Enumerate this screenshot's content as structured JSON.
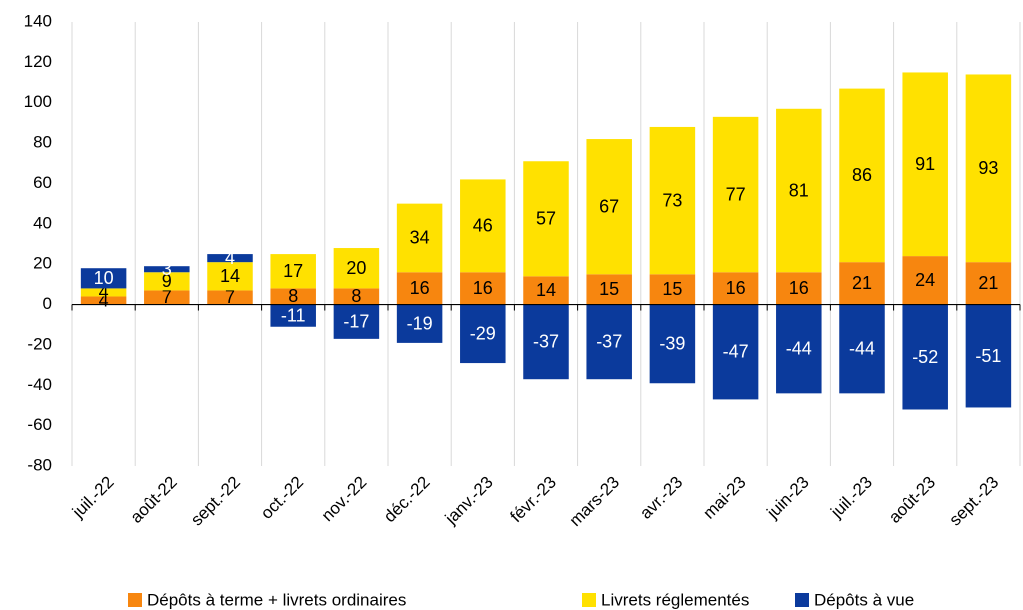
{
  "chart_data": {
    "type": "stacked_bar",
    "categories": [
      "juil.-22",
      "août-22",
      "sept.-22",
      "oct.-22",
      "nov.-22",
      "déc.-22",
      "janv.-23",
      "févr.-23",
      "mars-23",
      "avr.-23",
      "mai-23",
      "juin-23",
      "juil.-23",
      "août-23",
      "sept.-23"
    ],
    "series": [
      {
        "name": "Dépôts à terme + livrets ordinaires",
        "color": "#f7860f",
        "values": [
          4,
          7,
          7,
          8,
          8,
          16,
          16,
          14,
          15,
          15,
          16,
          16,
          21,
          24,
          21
        ]
      },
      {
        "name": "Livrets réglementés",
        "color": "#ffe100",
        "values": [
          4,
          9,
          14,
          17,
          20,
          34,
          46,
          57,
          67,
          73,
          77,
          81,
          86,
          91,
          93
        ]
      },
      {
        "name": "Dépôts à vue",
        "color": "#0b3a9c",
        "values": [
          10,
          3,
          4,
          -11,
          -17,
          -19,
          -29,
          -37,
          -37,
          -39,
          -47,
          -44,
          -44,
          -52,
          -51
        ]
      }
    ],
    "ylim": [
      -80,
      140
    ],
    "yticks": [
      -80,
      -60,
      -40,
      -20,
      0,
      20,
      40,
      60,
      80,
      100,
      120,
      140
    ],
    "legend": "bottom"
  }
}
